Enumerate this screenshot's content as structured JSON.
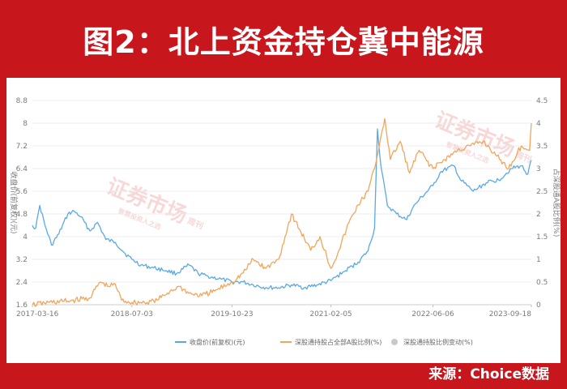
{
  "title": "图2：北上资金持仓冀中能源",
  "source": "来源：Choice数据",
  "watermark": {
    "main": "证券市场",
    "sub": "周刊",
    "tagline": "智慧投资人之选"
  },
  "colors": {
    "blue": "#5aa9e6",
    "orange": "#f2a55a",
    "gray": "#c9c9c9",
    "background": "#c8161d"
  },
  "chart_data": {
    "type": "line",
    "ylabel": "收盘价(前复权)(元)",
    "y2label": "占深股通A股比例(%)",
    "x_ticks": [
      "2017-03-16",
      "2018-07-03",
      "2019-10-23",
      "2021-02-05",
      "2022-06-06",
      "2023-09-18"
    ],
    "x_range": [
      "2017-03-16",
      "2023-09-18"
    ],
    "y_ticks": [
      "1.6",
      "2.4",
      "3.2",
      "4",
      "4.8",
      "5.6",
      "6.4",
      "7.2",
      "8",
      "8.8"
    ],
    "ylim": [
      1.6,
      8.8
    ],
    "y2_ticks": [
      "0",
      "0.5",
      "1",
      "1.5",
      "2",
      "2.5",
      "3",
      "3.5",
      "4",
      "4.5"
    ],
    "y2lim": [
      0,
      4.5
    ],
    "legend": [
      "收盘价(前复权)(元)",
      "深股通持股占全部A股比例(%)",
      "深股通持股比例变动(%)"
    ],
    "series": [
      {
        "name": "收盘价(前复权)(元)",
        "axis": "left",
        "color": "#5aa9e6",
        "points": [
          [
            "2017-03-16",
            4.4
          ],
          [
            "2017-04-01",
            4.3
          ],
          [
            "2017-04-20",
            5.1
          ],
          [
            "2017-05-15",
            4.4
          ],
          [
            "2017-06-15",
            3.7
          ],
          [
            "2017-07-20",
            4.1
          ],
          [
            "2017-09-01",
            4.8
          ],
          [
            "2017-10-01",
            4.9
          ],
          [
            "2017-11-01",
            4.7
          ],
          [
            "2017-12-15",
            4.2
          ],
          [
            "2018-01-20",
            4.5
          ],
          [
            "2018-03-01",
            3.9
          ],
          [
            "2018-04-15",
            3.8
          ],
          [
            "2018-06-01",
            3.4
          ],
          [
            "2018-07-03",
            3.2
          ],
          [
            "2018-08-15",
            3.0
          ],
          [
            "2018-10-15",
            2.9
          ],
          [
            "2018-12-15",
            2.8
          ],
          [
            "2019-02-01",
            2.7
          ],
          [
            "2019-04-01",
            3.0
          ],
          [
            "2019-05-15",
            2.7
          ],
          [
            "2019-07-01",
            2.6
          ],
          [
            "2019-09-01",
            2.5
          ],
          [
            "2019-10-23",
            2.4
          ],
          [
            "2019-12-15",
            2.4
          ],
          [
            "2020-02-01",
            2.3
          ],
          [
            "2020-04-01",
            2.2
          ],
          [
            "2020-06-01",
            2.2
          ],
          [
            "2020-08-01",
            2.3
          ],
          [
            "2020-10-01",
            2.2
          ],
          [
            "2020-12-01",
            2.3
          ],
          [
            "2021-02-05",
            2.45
          ],
          [
            "2021-04-15",
            2.8
          ],
          [
            "2021-06-15",
            3.1
          ],
          [
            "2021-08-01",
            3.5
          ],
          [
            "2021-09-01",
            4.3
          ],
          [
            "2021-09-15",
            7.8
          ],
          [
            "2021-10-01",
            6.5
          ],
          [
            "2021-11-01",
            5.1
          ],
          [
            "2021-12-15",
            4.8
          ],
          [
            "2022-02-01",
            4.6
          ],
          [
            "2022-03-01",
            5.0
          ],
          [
            "2022-04-01",
            5.3
          ],
          [
            "2022-06-06",
            5.8
          ],
          [
            "2022-07-15",
            6.3
          ],
          [
            "2022-09-15",
            6.5
          ],
          [
            "2022-10-15",
            6.0
          ],
          [
            "2022-12-15",
            5.6
          ],
          [
            "2023-02-15",
            5.9
          ],
          [
            "2023-04-15",
            6.0
          ],
          [
            "2023-06-15",
            6.4
          ],
          [
            "2023-08-01",
            6.5
          ],
          [
            "2023-09-01",
            6.2
          ],
          [
            "2023-09-18",
            6.7
          ]
        ]
      },
      {
        "name": "深股通持股占全部A股比例(%)",
        "axis": "right",
        "color": "#f2a55a",
        "points": [
          [
            "2017-03-16",
            0.0
          ],
          [
            "2017-06-01",
            0.05
          ],
          [
            "2017-09-01",
            0.08
          ],
          [
            "2017-12-15",
            0.15
          ],
          [
            "2018-02-01",
            0.5
          ],
          [
            "2018-03-15",
            0.4
          ],
          [
            "2018-04-15",
            0.45
          ],
          [
            "2018-05-15",
            0.1
          ],
          [
            "2018-07-03",
            0.05
          ],
          [
            "2018-09-01",
            0.05
          ],
          [
            "2018-11-01",
            0.1
          ],
          [
            "2019-01-01",
            0.3
          ],
          [
            "2019-02-15",
            0.4
          ],
          [
            "2019-04-01",
            0.25
          ],
          [
            "2019-06-01",
            0.2
          ],
          [
            "2019-08-01",
            0.3
          ],
          [
            "2019-10-23",
            0.5
          ],
          [
            "2019-12-15",
            0.7
          ],
          [
            "2020-02-01",
            1.0
          ],
          [
            "2020-04-01",
            0.8
          ],
          [
            "2020-06-01",
            1.0
          ],
          [
            "2020-08-01",
            2.0
          ],
          [
            "2020-09-15",
            1.6
          ],
          [
            "2020-11-01",
            1.2
          ],
          [
            "2020-12-15",
            1.5
          ],
          [
            "2021-02-05",
            0.8
          ],
          [
            "2021-03-15",
            1.2
          ],
          [
            "2021-05-01",
            1.8
          ],
          [
            "2021-06-15",
            2.2
          ],
          [
            "2021-08-01",
            2.5
          ],
          [
            "2021-09-01",
            3.0
          ],
          [
            "2021-10-01",
            3.7
          ],
          [
            "2021-10-20",
            4.1
          ],
          [
            "2021-11-15",
            3.2
          ],
          [
            "2022-01-01",
            3.6
          ],
          [
            "2022-02-15",
            2.9
          ],
          [
            "2022-04-01",
            3.4
          ],
          [
            "2022-06-06",
            3.0
          ],
          [
            "2022-08-01",
            3.2
          ],
          [
            "2022-10-01",
            3.4
          ],
          [
            "2022-12-01",
            3.5
          ],
          [
            "2023-02-01",
            3.6
          ],
          [
            "2023-04-01",
            3.3
          ],
          [
            "2023-06-01",
            3.0
          ],
          [
            "2023-08-01",
            3.5
          ],
          [
            "2023-09-10",
            3.4
          ],
          [
            "2023-09-18",
            4.0
          ]
        ]
      }
    ]
  }
}
